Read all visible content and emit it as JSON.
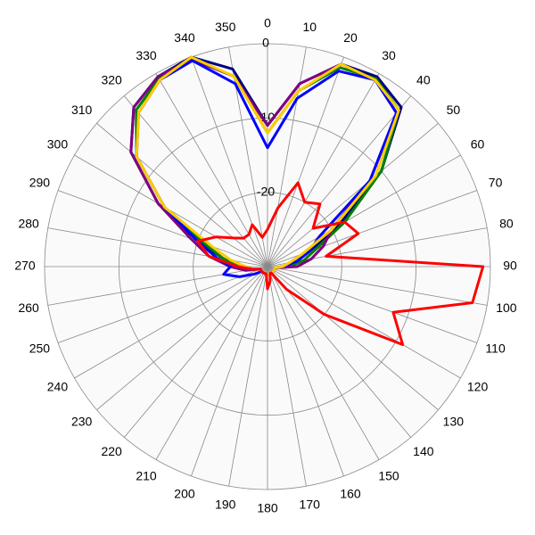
{
  "chart_data": {
    "type": "polar",
    "theta": [
      0,
      10,
      20,
      30,
      40,
      50,
      60,
      70,
      80,
      90,
      100,
      110,
      120,
      130,
      140,
      150,
      160,
      170,
      180,
      190,
      200,
      210,
      220,
      230,
      240,
      250,
      260,
      270,
      280,
      290,
      300,
      310,
      320,
      330,
      340,
      350
    ],
    "rlim": [
      -30,
      0
    ],
    "rticks": [
      -20,
      -10,
      0
    ],
    "thetaticks": [
      0,
      10,
      20,
      30,
      40,
      50,
      60,
      70,
      80,
      90,
      100,
      110,
      120,
      130,
      140,
      150,
      160,
      170,
      180,
      190,
      200,
      210,
      220,
      230,
      240,
      250,
      260,
      270,
      280,
      290,
      300,
      310,
      320,
      330,
      340,
      350
    ],
    "grid": true,
    "series": [
      {
        "color": "#000080",
        "values": [
          -11,
          -5,
          -1,
          -0.5,
          -2,
          -10,
          -19,
          -24,
          -26,
          -28,
          -29,
          -29,
          -29,
          -29,
          -29,
          -29,
          -29,
          -29,
          -29,
          -29,
          -29,
          -29,
          -29,
          -29,
          -29,
          -29,
          -28,
          -26,
          -24,
          -20,
          -13,
          -6,
          -2,
          -0.5,
          0,
          -3
        ]
      },
      {
        "color": "#008000",
        "values": [
          -12,
          -6,
          -1.5,
          -0.8,
          -2.5,
          -10,
          -18,
          -23,
          -25,
          -27,
          -29,
          -29,
          -29,
          -29,
          -29,
          -29,
          -29,
          -29,
          -29,
          -29,
          -29,
          -29,
          -29,
          -29,
          -29,
          -29,
          -28,
          -27,
          -24,
          -21,
          -14,
          -7,
          -2.5,
          -0.8,
          -0.3,
          -4
        ]
      },
      {
        "color": "#800080",
        "values": [
          -11,
          -5,
          -1,
          -1,
          -3,
          -12,
          -20,
          -22,
          -24,
          -26,
          -29,
          -29,
          -29,
          -29,
          -29,
          -29,
          -29,
          -29,
          -29,
          -29,
          -29,
          -29,
          -29,
          -29,
          -29,
          -29,
          -27,
          -25,
          -22,
          -19,
          -13,
          -6,
          -2,
          -0.5,
          -0.3,
          -4
        ]
      },
      {
        "color": "#0000ff",
        "values": [
          -14,
          -7,
          -2,
          -1,
          -3,
          -12,
          -22,
          -24,
          -26,
          -28,
          -29,
          -29,
          -29,
          -29,
          -29,
          -29,
          -29,
          -29,
          -29,
          -29,
          -29,
          -29,
          -29,
          -29,
          -28,
          -26,
          -24,
          -25,
          -23,
          -20,
          -14,
          -7,
          -3,
          -1,
          -0.5,
          -5
        ]
      },
      {
        "color": "#ffcc00",
        "values": [
          -12,
          -6,
          -1,
          -1,
          -2.5,
          -11,
          -20,
          -25,
          -27,
          -28,
          -29,
          -29,
          -29,
          -29,
          -29,
          -29,
          -29,
          -29,
          -29,
          -29,
          -29,
          -29,
          -29,
          -29,
          -29,
          -29,
          -28,
          -27,
          -25,
          -22,
          -14,
          -7,
          -3,
          -1,
          0,
          -4
        ]
      },
      {
        "color": "#ff0000",
        "values": [
          -25,
          -22,
          -18,
          -20,
          -19,
          -22,
          -18,
          -17,
          -22,
          -1,
          -2,
          -12,
          -9,
          -20,
          -26,
          -29,
          -29,
          -28,
          -27,
          -29,
          -29,
          -29,
          -29,
          -29,
          -29,
          -29,
          -28,
          -26,
          -22,
          -20,
          -22,
          -24,
          -25,
          -25,
          -24,
          -26
        ]
      }
    ]
  }
}
